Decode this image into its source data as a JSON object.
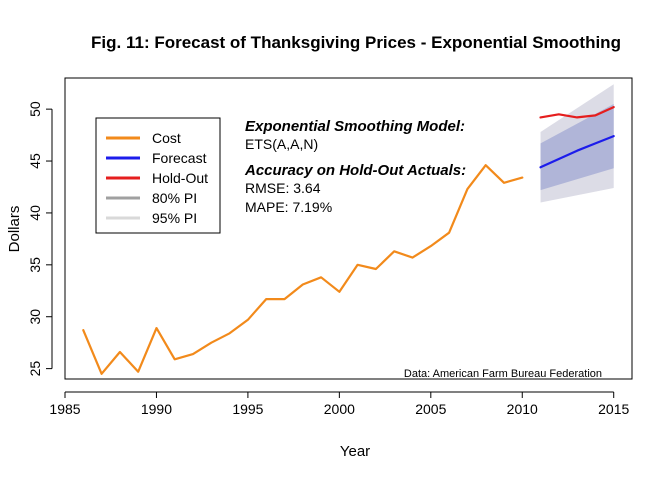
{
  "chart_data": {
    "type": "line",
    "title": "Fig. 11: Forecast of Thanksgiving Prices - Exponential Smoothing",
    "xlabel": "Year",
    "ylabel": "Dollars",
    "xlim": [
      1985,
      2016
    ],
    "ylim": [
      24,
      53
    ],
    "x_ticks": [
      1985,
      1990,
      1995,
      2000,
      2005,
      2010,
      2015
    ],
    "y_ticks": [
      25,
      30,
      35,
      40,
      45,
      50
    ],
    "grid": false,
    "legend": {
      "placement": "top-left",
      "entries": [
        {
          "label": "Cost",
          "color": "#F28A1B"
        },
        {
          "label": "Forecast",
          "color": "#1C1CEB"
        },
        {
          "label": "Hold-Out",
          "color": "#E51E1E"
        },
        {
          "label": "80% PI",
          "color": "#A0A0A0"
        },
        {
          "label": "95% PI",
          "color": "#D9D9D9"
        }
      ]
    },
    "series": [
      {
        "name": "Cost",
        "color": "#F28A1B",
        "x": [
          1986,
          1987,
          1988,
          1989,
          1990,
          1991,
          1992,
          1993,
          1994,
          1995,
          1996,
          1997,
          1998,
          1999,
          2000,
          2001,
          2002,
          2003,
          2004,
          2005,
          2006,
          2007,
          2008,
          2009,
          2010
        ],
        "y": [
          28.7,
          24.5,
          26.6,
          24.7,
          28.9,
          25.9,
          26.4,
          27.5,
          28.4,
          29.7,
          31.7,
          31.7,
          33.1,
          33.8,
          32.4,
          35.0,
          34.6,
          36.3,
          35.7,
          36.8,
          38.1,
          42.3,
          44.6,
          42.9,
          43.4
        ]
      },
      {
        "name": "Forecast",
        "color": "#1C1CEB",
        "x": [
          2011,
          2012,
          2013,
          2014,
          2015
        ],
        "y": [
          44.4,
          45.2,
          46.0,
          46.7,
          47.4
        ]
      },
      {
        "name": "Hold-Out",
        "color": "#E51E1E",
        "x": [
          2011,
          2012,
          2013,
          2014,
          2015
        ],
        "y": [
          49.2,
          49.5,
          49.2,
          49.4,
          50.2
        ]
      }
    ],
    "intervals": {
      "x": [
        2011,
        2015
      ],
      "pi95_lower": [
        41.0,
        42.4
      ],
      "pi95_upper": [
        47.8,
        52.4
      ],
      "pi80_lower": [
        42.2,
        44.3
      ],
      "pi80_upper": [
        46.7,
        50.5
      ],
      "pi95_color": "#DCDCE6",
      "pi80_color": "#B0B5D8"
    },
    "annotations": {
      "model_heading": "Exponential Smoothing Model:",
      "model_value": "ETS(A,A,N)",
      "accuracy_heading": "Accuracy on Hold-Out Actuals:",
      "rmse": "RMSE: 3.64",
      "mape": "MAPE: 7.19%",
      "source": "Data: American Farm Bureau Federation"
    }
  }
}
